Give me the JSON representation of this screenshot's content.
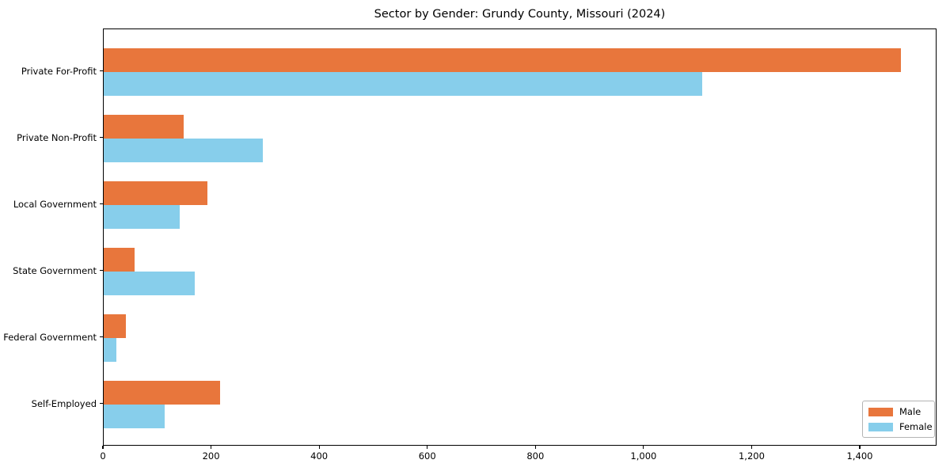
{
  "chart_data": {
    "type": "bar",
    "orientation": "horizontal",
    "title": "Sector by Gender: Grundy County, Missouri (2024)",
    "categories": [
      "Private For-Profit",
      "Private Non-Profit",
      "Local Government",
      "State Government",
      "Federal Government",
      "Self-Employed"
    ],
    "series": [
      {
        "name": "Male",
        "color": "#e8763c",
        "values": [
          1475,
          148,
          192,
          57,
          41,
          215
        ]
      },
      {
        "name": "Female",
        "color": "#87ceeb",
        "values": [
          1107,
          295,
          140,
          168,
          24,
          113
        ]
      }
    ],
    "xlabel": "",
    "ylabel": "",
    "xlim": [
      0,
      1542
    ],
    "xticks": {
      "values": [
        0,
        200,
        400,
        600,
        800,
        1000,
        1200,
        1400
      ],
      "labels": [
        "0",
        "200",
        "400",
        "600",
        "800",
        "1,000",
        "1,200",
        "1,400"
      ]
    },
    "grid": false,
    "legend": {
      "position": "lower right",
      "entries": [
        "Male",
        "Female"
      ]
    },
    "colors": {
      "axis": "#000000",
      "text": "#000000",
      "background": "#ffffff",
      "legend_border": "#b4b4b4"
    }
  }
}
